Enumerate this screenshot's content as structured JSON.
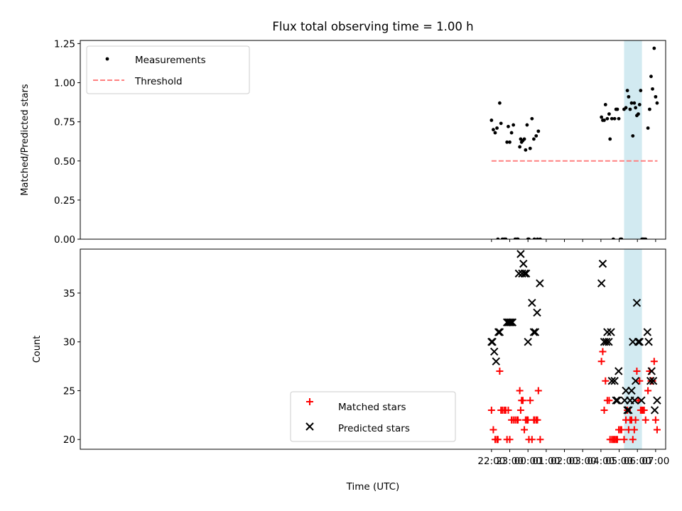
{
  "title": "Flux total observing time = 1.00 h",
  "x_axis": {
    "label": "Time (UTC)",
    "min_hours": -0.55,
    "max_hours": 31.55,
    "ticks": [
      {
        "h": 22,
        "label": "22:00"
      },
      {
        "h": 23,
        "label": "23:00"
      },
      {
        "h": 24,
        "label": "00:00"
      },
      {
        "h": 25,
        "label": "01:00"
      },
      {
        "h": 26,
        "label": "02:00"
      },
      {
        "h": 27,
        "label": "03:00"
      },
      {
        "h": 28,
        "label": "04:00"
      },
      {
        "h": 29,
        "label": "05:00"
      },
      {
        "h": 30,
        "label": "06:00"
      },
      {
        "h": 31,
        "label": "07:00"
      }
    ]
  },
  "highlight_span_hours": [
    29.27,
    30.25
  ],
  "highlight_color": "#add8e6",
  "chart_data": [
    {
      "type": "scatter",
      "panel": "top",
      "ylabel": "Matched/Predicted stars",
      "ylim": [
        0,
        1.27
      ],
      "yticks": [
        "0.00",
        "0.25",
        "0.50",
        "0.75",
        "1.00",
        "1.25"
      ],
      "ytick_values": [
        0,
        0.25,
        0.5,
        0.75,
        1.0,
        1.25
      ],
      "legend_position": "upper-left",
      "legend": [
        "Measurements",
        "Threshold"
      ],
      "threshold": {
        "name": "Threshold",
        "y": 0.5,
        "x_range": [
          22.0,
          31.1
        ],
        "color": "#ff8080"
      },
      "series": [
        {
          "name": "Measurements",
          "color": "#000000",
          "x": [
            22.0,
            22.1,
            22.2,
            22.3,
            22.35,
            22.45,
            22.52,
            22.6,
            22.7,
            22.78,
            22.85,
            22.92,
            23.0,
            23.1,
            23.2,
            23.3,
            23.4,
            23.45,
            23.55,
            23.6,
            23.65,
            23.72,
            23.8,
            23.87,
            23.95,
            24.0,
            24.05,
            24.12,
            24.22,
            24.32,
            24.35,
            24.45,
            24.52,
            24.57,
            24.67,
            28.03,
            28.1,
            28.18,
            28.25,
            28.35,
            28.45,
            28.5,
            28.6,
            28.68,
            28.75,
            28.83,
            28.9,
            28.98,
            29.07,
            29.13,
            29.27,
            29.37,
            29.45,
            29.52,
            29.6,
            29.68,
            29.75,
            29.83,
            29.9,
            29.97,
            30.05,
            30.12,
            30.18,
            30.25,
            30.3,
            30.37,
            30.45,
            30.58,
            30.67,
            30.75,
            30.83,
            30.92,
            31.0,
            31.08
          ],
          "y": [
            0.76,
            0.7,
            0.68,
            0.71,
            0.0,
            0.87,
            0.74,
            0.0,
            0.0,
            0.0,
            0.62,
            0.72,
            0.62,
            0.68,
            0.73,
            0.0,
            0.0,
            0.0,
            0.59,
            0.64,
            0.62,
            0.63,
            0.64,
            0.57,
            0.73,
            0.0,
            0.0,
            0.58,
            0.77,
            0.64,
            0.0,
            0.66,
            0.0,
            0.69,
            0.0,
            0.78,
            0.76,
            0.76,
            0.86,
            0.77,
            0.8,
            0.64,
            0.77,
            0.0,
            0.77,
            0.83,
            0.83,
            0.77,
            0.0,
            0.0,
            0.83,
            0.84,
            0.95,
            0.91,
            0.83,
            0.87,
            0.66,
            0.87,
            0.84,
            0.79,
            0.8,
            0.86,
            0.95,
            0.0,
            0.0,
            0.0,
            0.0,
            0.71,
            0.83,
            1.04,
            0.96,
            1.22,
            0.91,
            0.87
          ]
        }
      ]
    },
    {
      "type": "scatter",
      "panel": "bottom",
      "ylabel": "Count",
      "ylim": [
        19.0,
        39.5
      ],
      "yticks": [
        "20",
        "25",
        "30",
        "35"
      ],
      "ytick_values": [
        20,
        25,
        30,
        35
      ],
      "legend_position": "lower-center",
      "legend": [
        "Matched stars",
        "Predicted stars"
      ],
      "series": [
        {
          "name": "Matched stars",
          "color": "#ff0000",
          "x": [
            22.0,
            22.1,
            22.2,
            22.3,
            22.35,
            22.45,
            22.52,
            22.6,
            22.7,
            22.78,
            22.85,
            22.92,
            23.0,
            23.1,
            23.2,
            23.3,
            23.4,
            23.45,
            23.55,
            23.6,
            23.65,
            23.72,
            23.8,
            23.87,
            23.95,
            24.0,
            24.05,
            24.12,
            24.22,
            24.32,
            24.35,
            24.45,
            24.52,
            24.57,
            24.67,
            28.03,
            28.1,
            28.18,
            28.25,
            28.35,
            28.45,
            28.5,
            28.6,
            28.68,
            28.75,
            28.83,
            28.9,
            28.98,
            29.07,
            29.13,
            29.27,
            29.37,
            29.45,
            29.52,
            29.6,
            29.68,
            29.75,
            29.83,
            29.9,
            29.97,
            30.05,
            30.12,
            30.18,
            30.25,
            30.3,
            30.37,
            30.45,
            30.58,
            30.67,
            30.75,
            30.83,
            30.92,
            31.0,
            31.08
          ],
          "y": [
            23,
            21,
            20,
            20,
            20,
            27,
            23,
            23,
            23,
            23,
            20,
            23,
            20,
            22,
            22,
            22,
            22,
            22,
            25,
            23,
            24,
            24,
            21,
            22,
            22,
            22,
            20,
            24,
            20,
            22,
            22,
            22,
            22,
            25,
            20,
            28,
            29,
            23,
            26,
            24,
            24,
            20,
            20,
            20,
            20,
            20,
            20,
            21,
            21,
            21,
            20,
            22,
            23,
            21,
            22,
            22,
            20,
            21,
            22,
            27,
            24,
            26,
            23,
            23,
            23,
            23,
            22,
            25,
            27,
            26,
            26,
            28,
            22,
            21
          ]
        },
        {
          "name": "Predicted stars",
          "color": "#000000",
          "x": [
            22.0,
            22.05,
            22.15,
            22.25,
            22.38,
            22.45,
            22.85,
            22.92,
            23.0,
            23.07,
            23.15,
            23.5,
            23.6,
            23.68,
            23.75,
            23.82,
            23.9,
            24.0,
            24.22,
            24.32,
            24.4,
            24.5,
            24.65,
            28.03,
            28.1,
            28.18,
            28.3,
            28.35,
            28.43,
            28.55,
            28.6,
            28.75,
            28.83,
            28.9,
            28.97,
            29.3,
            29.37,
            29.45,
            29.52,
            29.6,
            29.68,
            29.75,
            29.85,
            29.9,
            29.97,
            30.05,
            30.12,
            30.22,
            30.55,
            30.62,
            30.72,
            30.78,
            30.87,
            30.95,
            31.08
          ],
          "y": [
            30,
            30,
            29,
            28,
            31,
            31,
            32,
            32,
            32,
            32,
            32,
            37,
            39,
            37,
            38,
            37,
            37,
            30,
            34,
            31,
            31,
            33,
            36,
            36,
            38,
            30,
            30,
            31,
            30,
            31,
            26,
            26,
            24,
            24,
            27,
            24,
            25,
            23,
            23,
            24,
            25,
            30,
            24,
            26,
            34,
            30,
            30,
            24,
            31,
            30,
            26,
            27,
            26,
            23,
            24
          ]
        }
      ]
    }
  ]
}
